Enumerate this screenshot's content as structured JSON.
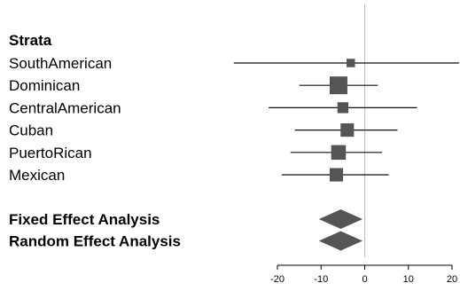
{
  "chart_data": {
    "type": "forest",
    "header": "Strata",
    "rows": [
      {
        "label": "SouthAmerican",
        "estimate": -3.2,
        "ci": [
          -30,
          22
        ],
        "weight": 0.25
      },
      {
        "label": "Dominican",
        "estimate": -6.0,
        "ci": [
          -15,
          3
        ],
        "weight": 1.0
      },
      {
        "label": "CentralAmerican",
        "estimate": -5.0,
        "ci": [
          -22,
          12
        ],
        "weight": 0.45
      },
      {
        "label": "Cuban",
        "estimate": -4.0,
        "ci": [
          -16,
          7.5
        ],
        "weight": 0.65
      },
      {
        "label": "PuertoRican",
        "estimate": -6.0,
        "ci": [
          -17,
          4
        ],
        "weight": 0.75
      },
      {
        "label": "Mexican",
        "estimate": -6.5,
        "ci": [
          -19,
          5.5
        ],
        "weight": 0.65
      }
    ],
    "summaries": [
      {
        "label": "Fixed Effect Analysis",
        "estimate": -5.5,
        "ci": [
          -10.5,
          -0.5
        ]
      },
      {
        "label": "Random Effect Analysis",
        "estimate": -5.5,
        "ci": [
          -10.5,
          -0.5
        ]
      }
    ],
    "x_ticks": [
      -20,
      -10,
      0,
      10,
      20
    ],
    "xlim": [
      -20,
      20
    ],
    "reference_line": 0,
    "colors": {
      "marker": "#555555",
      "line": "#111111",
      "reference": "#bbbbbb"
    }
  }
}
